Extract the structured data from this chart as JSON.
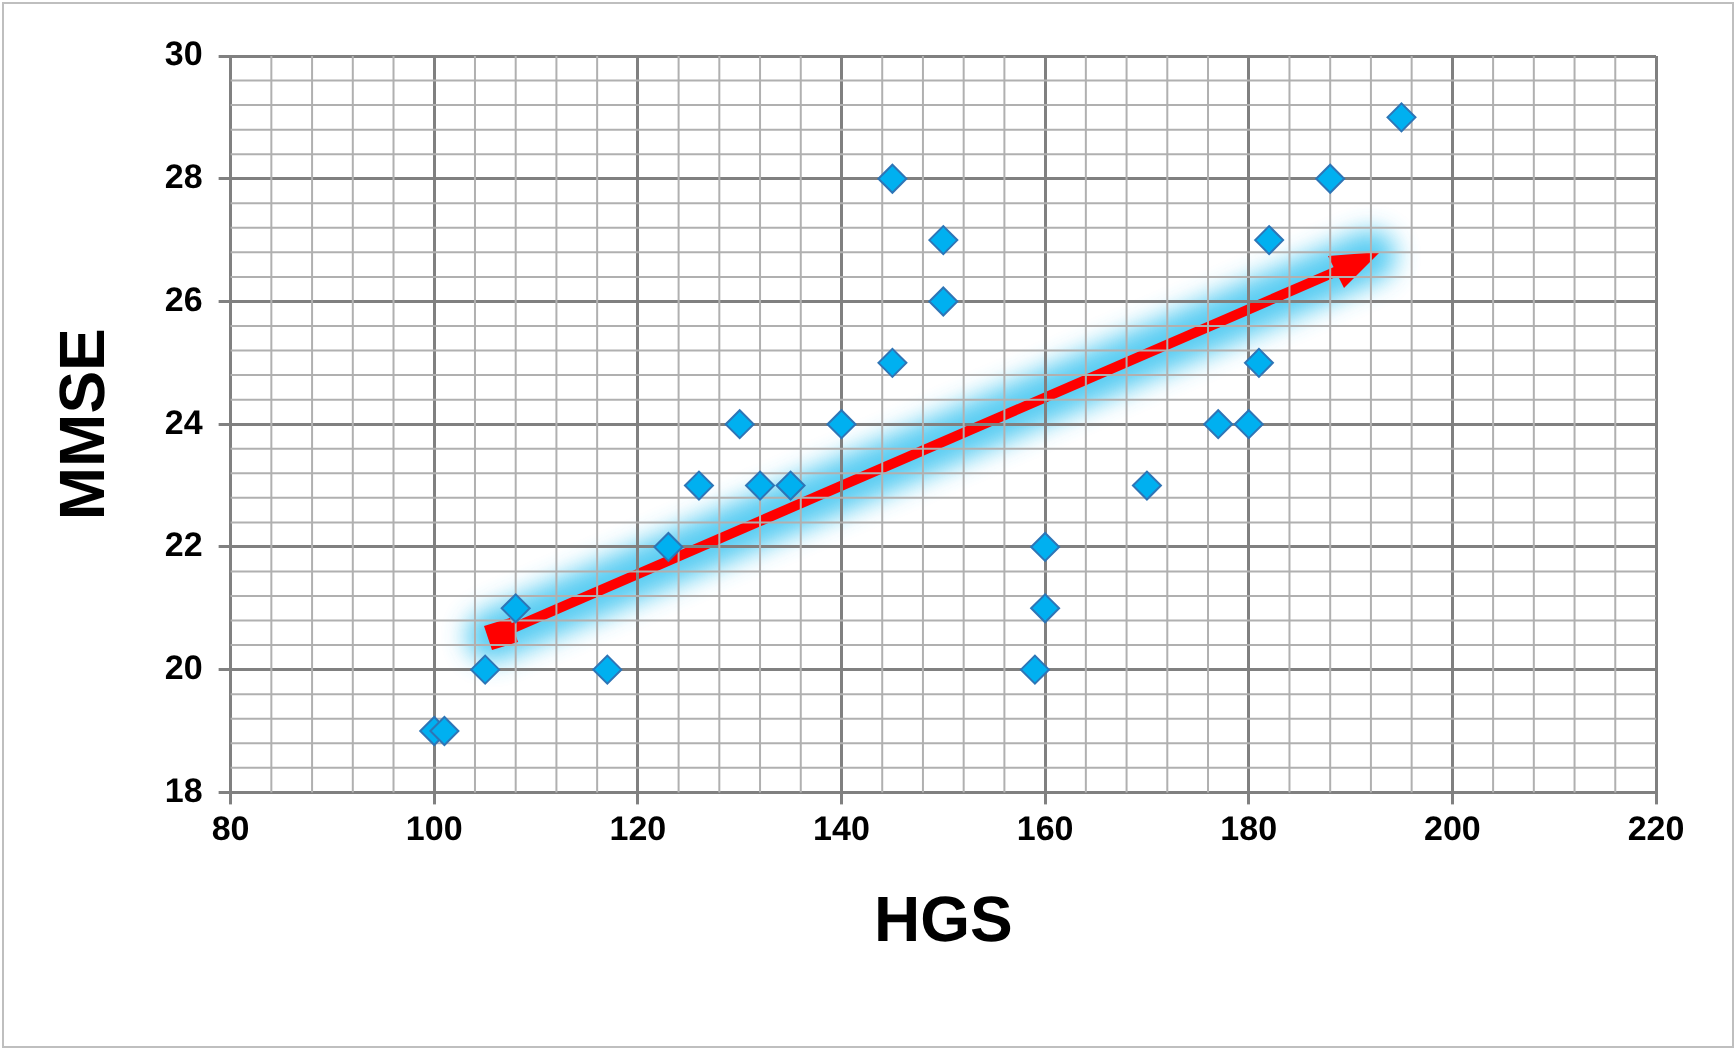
{
  "chart_data": {
    "type": "scatter",
    "xlabel": "HGS",
    "ylabel": "MMSE",
    "x": [
      100,
      101,
      105,
      108,
      117,
      123,
      126,
      130,
      132,
      135,
      140,
      145,
      145,
      150,
      150,
      159,
      160,
      160,
      170,
      177,
      180,
      181,
      182,
      188,
      195
    ],
    "series": [
      {
        "color": "#00b0f0",
        "values": [
          19,
          19,
          20,
          21,
          20,
          22,
          23,
          24,
          23,
          23,
          24,
          25,
          28,
          27,
          26,
          20,
          21,
          22,
          23,
          24,
          24,
          25,
          27,
          28,
          29
        ]
      }
    ],
    "xlim": [
      80,
      220
    ],
    "xticks": [
      80,
      100,
      120,
      140,
      160,
      180,
      200,
      220
    ],
    "ylim": [
      18,
      30
    ],
    "yticks": [
      18,
      20,
      22,
      24,
      26,
      28,
      30
    ],
    "grid": true,
    "legend": false,
    "marker": "diamond"
  }
}
